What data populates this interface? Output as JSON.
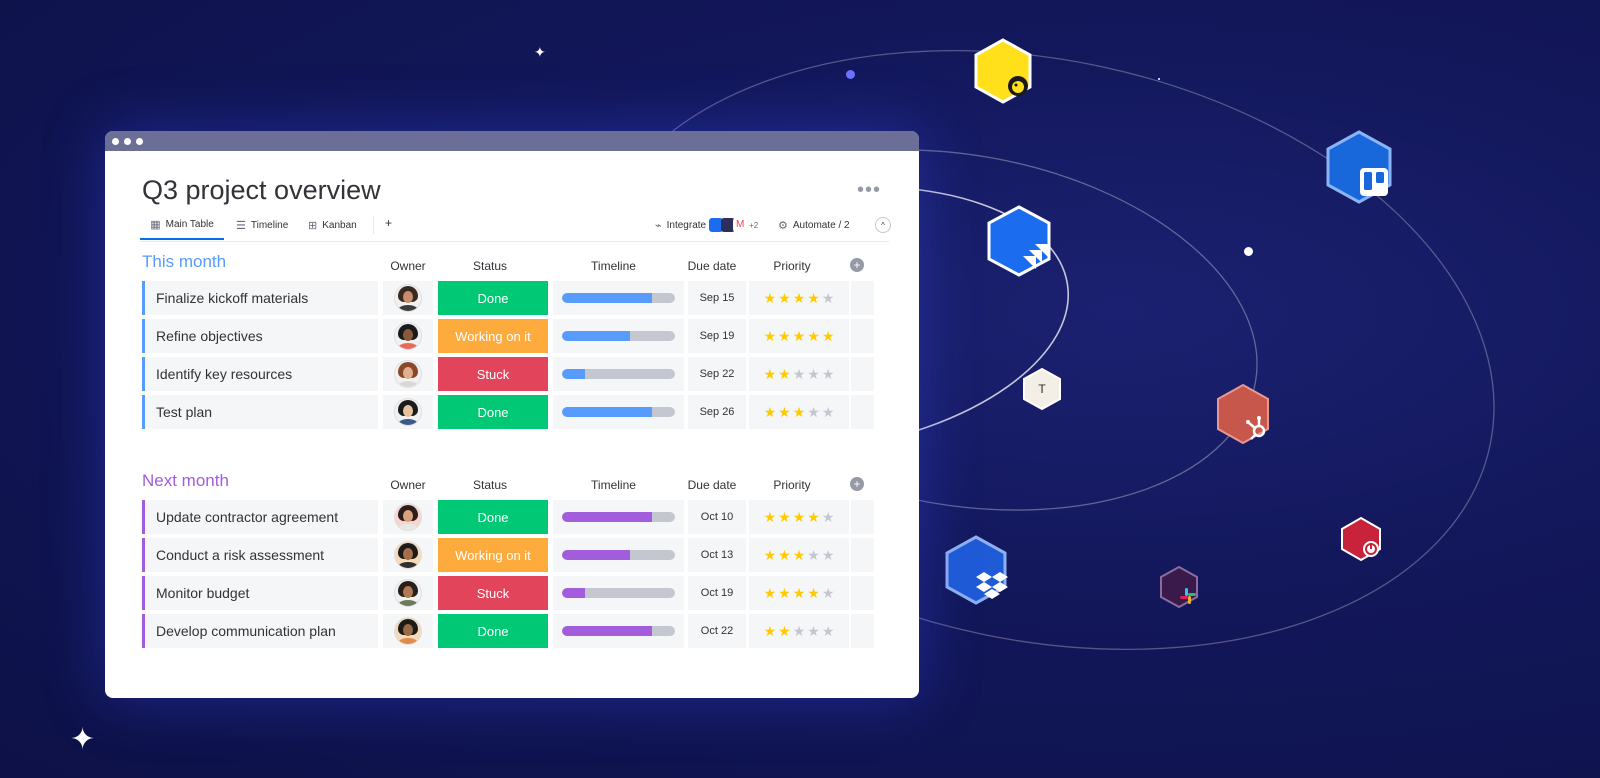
{
  "window": {
    "title": "Q3 project overview",
    "more_label": "•••"
  },
  "views": {
    "tabs": [
      {
        "label": "Main Table",
        "icon": "table-icon"
      },
      {
        "label": "Timeline",
        "icon": "timeline-icon"
      },
      {
        "label": "Kanban",
        "icon": "kanban-icon"
      }
    ],
    "add_label": "+",
    "integrate_label": "Integrate",
    "integrate_more": "+2",
    "automate_label": "Automate / 2",
    "collapse_label": "^"
  },
  "columns": {
    "owner": "Owner",
    "status": "Status",
    "timeline": "Timeline",
    "due_date": "Due date",
    "priority": "Priority"
  },
  "colors": {
    "done": "#00c875",
    "working": "#fdab3d",
    "stuck": "#e2445c",
    "this_month": "#579bfc",
    "next_month": "#a25ddc",
    "star": "#ffcb00",
    "star_off": "#c5c7d0"
  },
  "groups": [
    {
      "title": "This month",
      "color": "#579bfc",
      "rows": [
        {
          "name": "Finalize kickoff materials",
          "status": "Done",
          "status_color": "#00c875",
          "timeline_fill": 0.8,
          "due": "Sep 15",
          "priority": 4
        },
        {
          "name": "Refine objectives",
          "status": "Working on it",
          "status_color": "#fdab3d",
          "timeline_fill": 0.6,
          "due": "Sep 19",
          "priority": 5
        },
        {
          "name": "Identify key resources",
          "status": "Stuck",
          "status_color": "#e2445c",
          "timeline_fill": 0.2,
          "due": "Sep 22",
          "priority": 2
        },
        {
          "name": "Test plan",
          "status": "Done",
          "status_color": "#00c875",
          "timeline_fill": 0.8,
          "due": "Sep 26",
          "priority": 3
        }
      ]
    },
    {
      "title": "Next month",
      "color": "#a25ddc",
      "rows": [
        {
          "name": "Update contractor agreement",
          "status": "Done",
          "status_color": "#00c875",
          "timeline_fill": 0.8,
          "due": "Oct 10",
          "priority": 4
        },
        {
          "name": "Conduct a risk assessment",
          "status": "Working on it",
          "status_color": "#fdab3d",
          "timeline_fill": 0.6,
          "due": "Oct 13",
          "priority": 3
        },
        {
          "name": "Monitor budget",
          "status": "Stuck",
          "status_color": "#e2445c",
          "timeline_fill": 0.2,
          "due": "Oct 19",
          "priority": 4
        },
        {
          "name": "Develop communication plan",
          "status": "Done",
          "status_color": "#00c875",
          "timeline_fill": 0.8,
          "due": "Oct 22",
          "priority": 2
        }
      ]
    }
  ],
  "integrations": [
    {
      "name": "mailchimp-icon",
      "color": "#ffe01b"
    },
    {
      "name": "trello-icon",
      "color": "#1868db"
    },
    {
      "name": "jira-icon",
      "color": "#1c6cf0"
    },
    {
      "name": "toggl-icon",
      "color": "#f4efe6",
      "letter": "T"
    },
    {
      "name": "hubspot-icon",
      "color": "#c8574b"
    },
    {
      "name": "toggl-track-icon",
      "color": "#c8233a"
    },
    {
      "name": "dropbox-icon",
      "color": "#1f5bd6"
    },
    {
      "name": "slack-icon",
      "color": "#3a1a4a"
    }
  ]
}
